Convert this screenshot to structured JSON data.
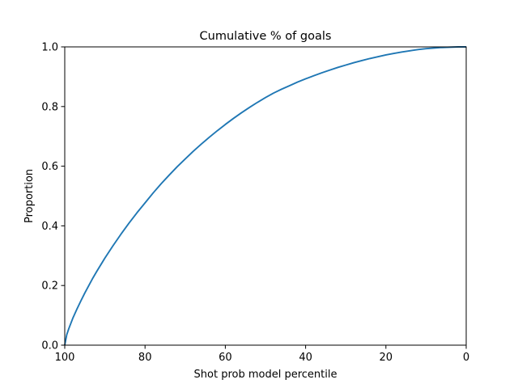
{
  "chart_data": {
    "type": "line",
    "title": "Cumulative % of goals",
    "xlabel": "Shot prob model percentile",
    "ylabel": "Proportion",
    "xlim": [
      100,
      0
    ],
    "ylim": [
      0.0,
      1.0
    ],
    "x_inverted": true,
    "grid": false,
    "legend": "none",
    "xticks": [
      {
        "value": 100,
        "label": "100"
      },
      {
        "value": 80,
        "label": "80"
      },
      {
        "value": 60,
        "label": "60"
      },
      {
        "value": 40,
        "label": "40"
      },
      {
        "value": 20,
        "label": "20"
      },
      {
        "value": 0,
        "label": "0"
      }
    ],
    "yticks": [
      {
        "value": 0.0,
        "label": "0.0"
      },
      {
        "value": 0.2,
        "label": "0.2"
      },
      {
        "value": 0.4,
        "label": "0.4"
      },
      {
        "value": 0.6,
        "label": "0.6"
      },
      {
        "value": 0.8,
        "label": "0.8"
      },
      {
        "value": 1.0,
        "label": "1.0"
      }
    ],
    "series": [
      {
        "color": "#1f77b4",
        "x": [
          100,
          99.5,
          99,
          98,
          97,
          96,
          95,
          94,
          93,
          92,
          90,
          88,
          86,
          84,
          82,
          80,
          78,
          76,
          74,
          72,
          70,
          68,
          66,
          64,
          62,
          60,
          58,
          56,
          54,
          52,
          50,
          48,
          46,
          44,
          42,
          40,
          38,
          36,
          34,
          32,
          30,
          28,
          26,
          24,
          22,
          20,
          18,
          16,
          14,
          12,
          10,
          8,
          6,
          4,
          2,
          0
        ],
        "y": [
          0.0,
          0.035,
          0.055,
          0.09,
          0.12,
          0.148,
          0.175,
          0.2,
          0.225,
          0.248,
          0.292,
          0.333,
          0.372,
          0.409,
          0.444,
          0.477,
          0.51,
          0.541,
          0.57,
          0.598,
          0.624,
          0.65,
          0.674,
          0.697,
          0.719,
          0.74,
          0.76,
          0.779,
          0.797,
          0.814,
          0.83,
          0.845,
          0.858,
          0.87,
          0.882,
          0.893,
          0.903,
          0.913,
          0.922,
          0.931,
          0.939,
          0.947,
          0.954,
          0.961,
          0.967,
          0.973,
          0.978,
          0.983,
          0.987,
          0.991,
          0.994,
          0.996,
          0.998,
          0.999,
          1.0,
          1.0
        ]
      }
    ]
  }
}
